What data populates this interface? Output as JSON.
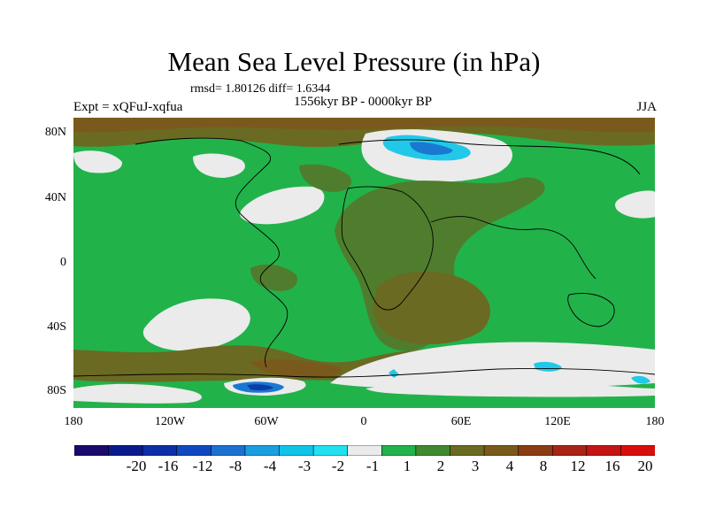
{
  "title": "Mean Sea Level Pressure (in hPa)",
  "stats_line": "rmsd= 1.80126 diff= 1.6344",
  "experiment": "Expt = xQFuJ-xqfua",
  "period": "1556kyr BP - 0000kyr BP",
  "season": "JJA",
  "y_axis_labels": [
    "80N",
    "40N",
    "0",
    "40S",
    "80S"
  ],
  "x_axis_labels": [
    "180",
    "120W",
    "60W",
    "0",
    "60E",
    "120E",
    "180"
  ],
  "colorbar": {
    "labels": [
      "-20",
      "-16",
      "-12",
      "-8",
      "-4",
      "-3",
      "-2",
      "-1",
      "1",
      "2",
      "3",
      "4",
      "8",
      "12",
      "16",
      "20"
    ],
    "colors": [
      "#1a0a6e",
      "#0a1a8c",
      "#0c2fa8",
      "#1048c0",
      "#1c70d0",
      "#1a9ee0",
      "#10c4e8",
      "#22e0f0",
      "#ebebeb",
      "#22b24a",
      "#3f8a30",
      "#6a6a22",
      "#7a5a1c",
      "#8a3c14",
      "#a82414",
      "#c41414",
      "#d80e0e"
    ]
  },
  "map_colors": {
    "base": "#22b24a",
    "neg_light": "#ebebeb",
    "olive": "#6a6a22",
    "dark_olive": "#4f7d2d",
    "brown": "#7a5a1c",
    "cyan": "#22c8e8",
    "blue": "#1a78d0",
    "dark_blue": "#0c3ca8"
  }
}
